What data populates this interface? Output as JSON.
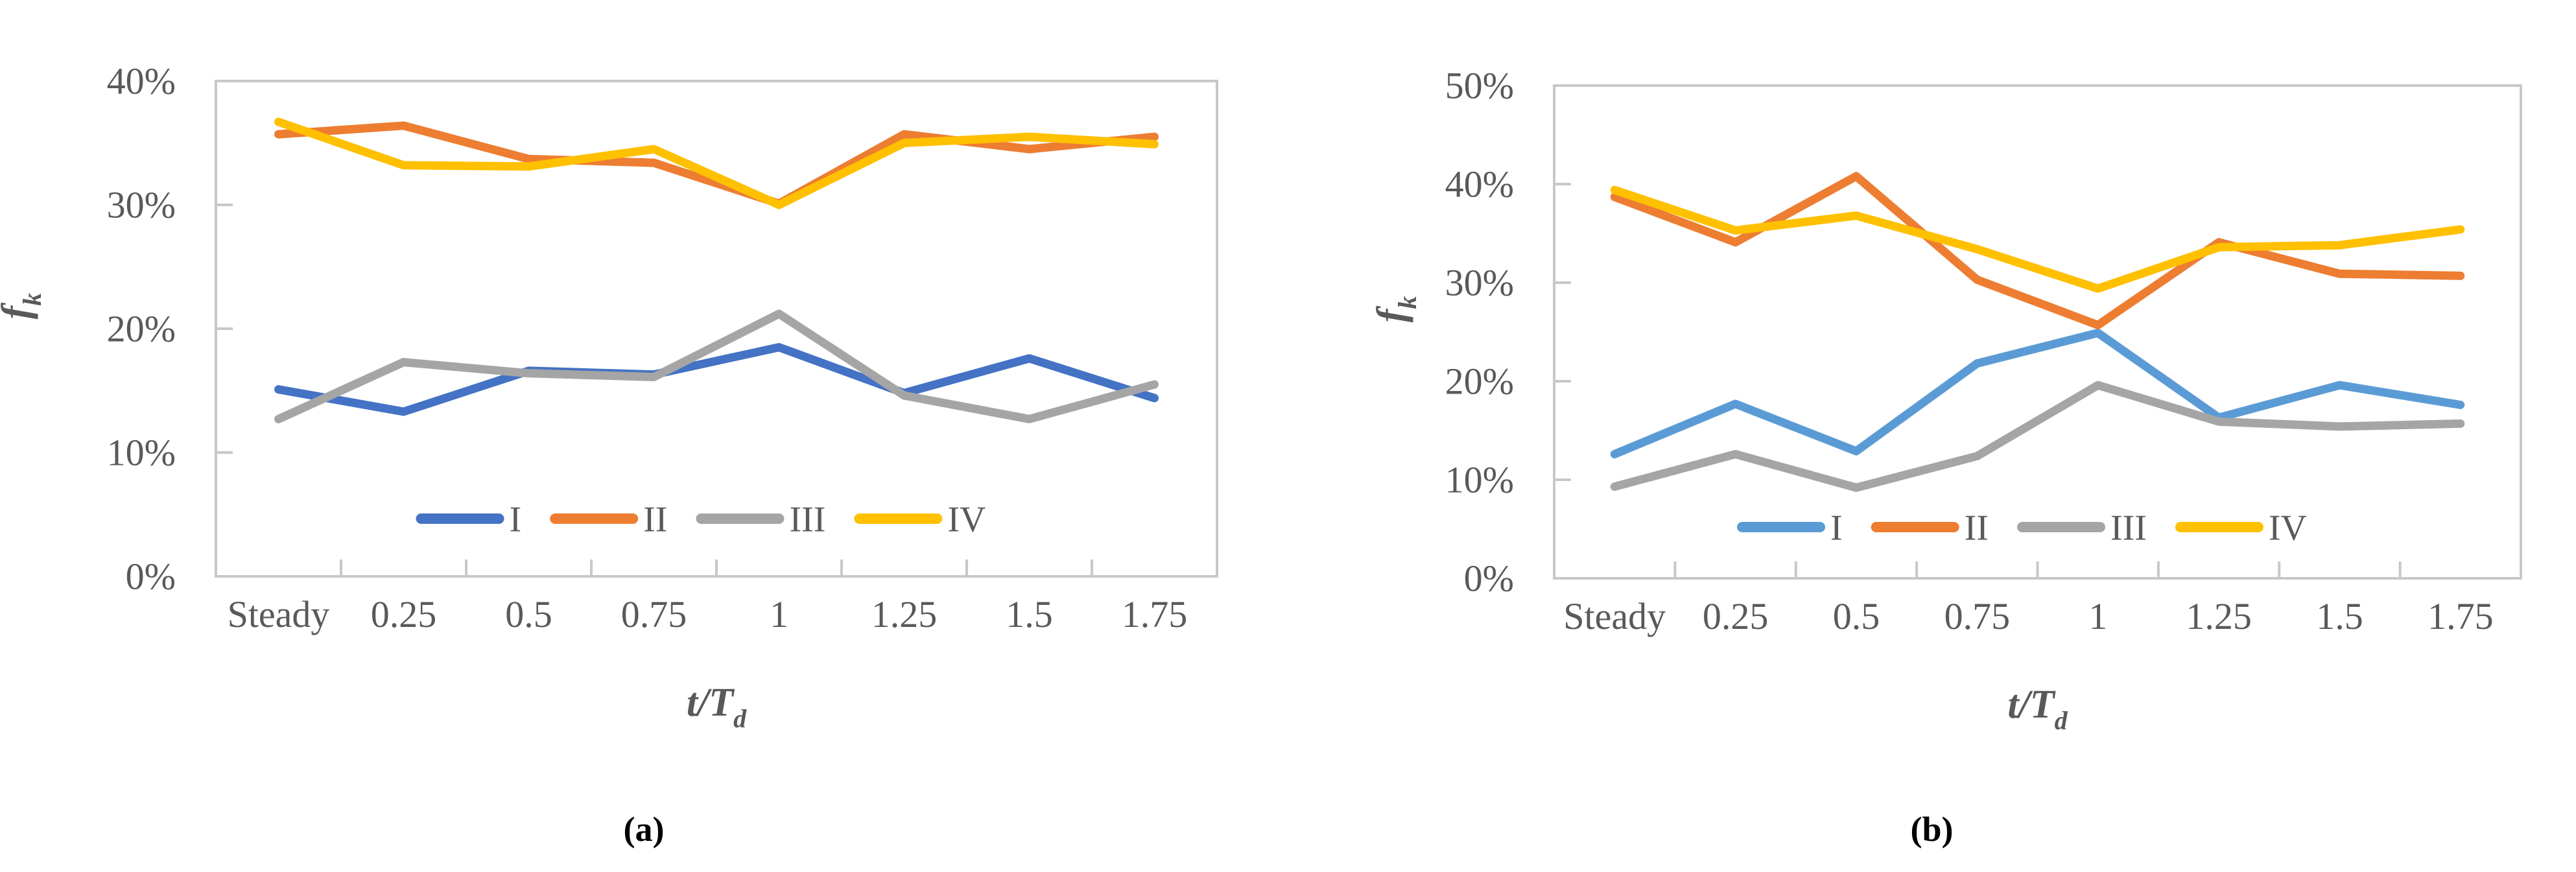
{
  "figure_title": "",
  "style": {
    "background_color": "#FFFFFF",
    "axis_color": "#C8C8C8",
    "tick_label_color": "#595959",
    "axis_title_color": "#595959",
    "caption_color": "#000000",
    "series_line_width": 13,
    "grid": false
  },
  "chart_data": [
    {
      "type": "line",
      "panel": "a",
      "caption": "(a)",
      "title": "",
      "xlabel": {
        "main": "t/T",
        "sub": "d"
      },
      "ylabel": {
        "main": "f",
        "sub": "k"
      },
      "categories": [
        "Steady",
        "0.25",
        "0.5",
        "0.75",
        "1",
        "1.25",
        "1.5",
        "1.75"
      ],
      "y_axis": {
        "min": 0,
        "max": 40,
        "step": 10,
        "suffix": "%"
      },
      "ylim": [
        0,
        40
      ],
      "legend_position": "inside-bottom",
      "legend_labels": [
        "I",
        "II",
        "III",
        "IV"
      ],
      "series": [
        {
          "name": "I",
          "color": "#4472C4",
          "values": [
            15.1,
            13.3,
            16.6,
            16.3,
            18.5,
            14.8,
            17.6,
            14.4
          ]
        },
        {
          "name": "II",
          "color": "#ED7D31",
          "values": [
            35.7,
            36.4,
            33.7,
            33.4,
            30.1,
            35.7,
            34.5,
            35.5
          ]
        },
        {
          "name": "III",
          "color": "#A5A5A5",
          "values": [
            12.7,
            17.3,
            16.4,
            16.1,
            21.2,
            14.6,
            12.7,
            15.5
          ]
        },
        {
          "name": "IV",
          "color": "#FFC000",
          "values": [
            36.7,
            33.2,
            33.1,
            34.5,
            30.0,
            35.0,
            35.5,
            34.9
          ]
        }
      ]
    },
    {
      "type": "line",
      "panel": "b",
      "caption": "(b)",
      "title": "",
      "xlabel": {
        "main": "t/T",
        "sub": "d"
      },
      "ylabel": {
        "main": "f",
        "sub": "k"
      },
      "categories": [
        "Steady",
        "0.25",
        "0.5",
        "0.75",
        "1",
        "1.25",
        "1.5",
        "1.75"
      ],
      "y_axis": {
        "min": 0,
        "max": 50,
        "step": 10,
        "suffix": "%"
      },
      "ylim": [
        0,
        50
      ],
      "legend_position": "inside-bottom",
      "legend_labels": [
        "I",
        "II",
        "III",
        "IV"
      ],
      "series": [
        {
          "name": "I",
          "color": "#5B9BD5",
          "values": [
            12.6,
            17.7,
            12.9,
            21.8,
            24.9,
            16.3,
            19.6,
            17.6
          ]
        },
        {
          "name": "II",
          "color": "#ED7D31",
          "values": [
            38.7,
            34.1,
            40.8,
            30.3,
            25.7,
            34.1,
            30.9,
            30.7
          ]
        },
        {
          "name": "III",
          "color": "#A5A5A5",
          "values": [
            9.3,
            12.6,
            9.2,
            12.4,
            19.6,
            15.9,
            15.4,
            15.7
          ]
        },
        {
          "name": "IV",
          "color": "#FFC000",
          "values": [
            39.4,
            35.3,
            36.8,
            33.4,
            29.4,
            33.6,
            33.8,
            35.4
          ]
        }
      ]
    }
  ]
}
